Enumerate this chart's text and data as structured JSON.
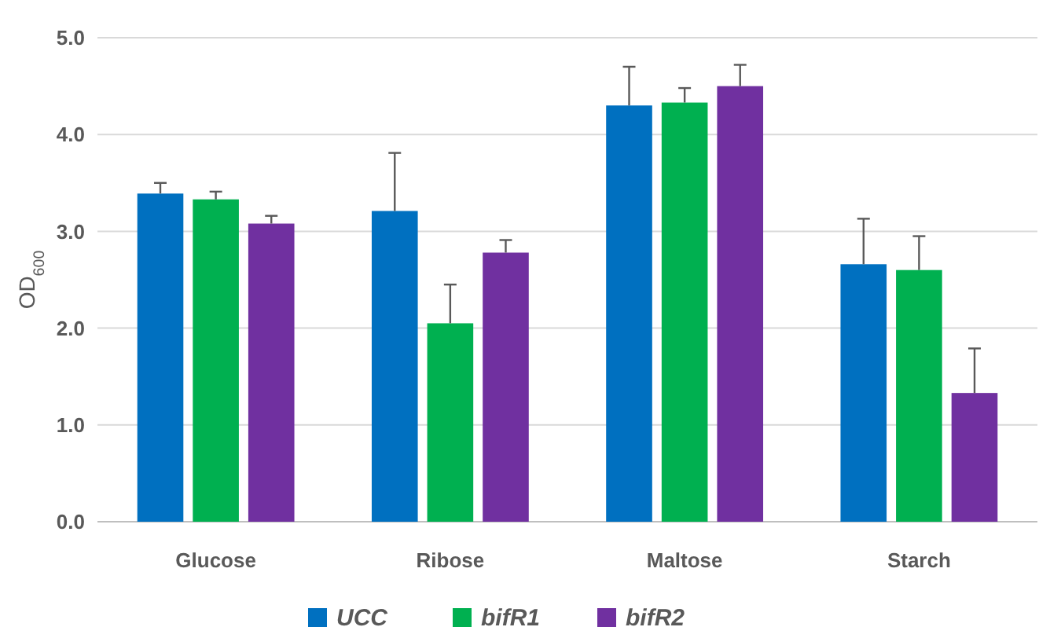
{
  "chart_data": {
    "type": "bar",
    "ylabel": "OD$_{600}$",
    "categories": [
      "Glucose",
      "Ribose",
      "Maltose",
      "Starch"
    ],
    "series": [
      {
        "name": "UCC",
        "color": "#0070c0",
        "values": [
          3.39,
          3.21,
          4.3,
          2.66
        ],
        "errors": [
          [
            3.39,
            3.5
          ],
          [
            3.21,
            3.81
          ],
          [
            4.3,
            4.7
          ],
          [
            2.66,
            3.13
          ]
        ]
      },
      {
        "name": "bifR1",
        "color": "#00b050",
        "values": [
          3.33,
          2.05,
          4.33,
          2.6
        ],
        "errors": [
          [
            3.33,
            3.41
          ],
          [
            2.05,
            2.45
          ],
          [
            4.33,
            4.48
          ],
          [
            2.6,
            2.95
          ]
        ]
      },
      {
        "name": "bifR2",
        "color": "#7030a0",
        "values": [
          3.08,
          2.78,
          4.5,
          1.33
        ],
        "errors": [
          [
            3.08,
            3.16
          ],
          [
            2.78,
            2.91
          ],
          [
            4.5,
            4.72
          ],
          [
            1.33,
            1.79
          ]
        ]
      }
    ],
    "ylim": [
      0,
      5
    ],
    "yticks": [
      {
        "value": 0,
        "label": "0.0"
      },
      {
        "value": 1,
        "label": "1.0"
      },
      {
        "value": 2,
        "label": "2.0"
      },
      {
        "value": 3,
        "label": "3.0"
      },
      {
        "value": 4,
        "label": "4.0"
      },
      {
        "value": 5,
        "label": "5.0"
      }
    ],
    "grid": "y",
    "legend": "bottom"
  }
}
